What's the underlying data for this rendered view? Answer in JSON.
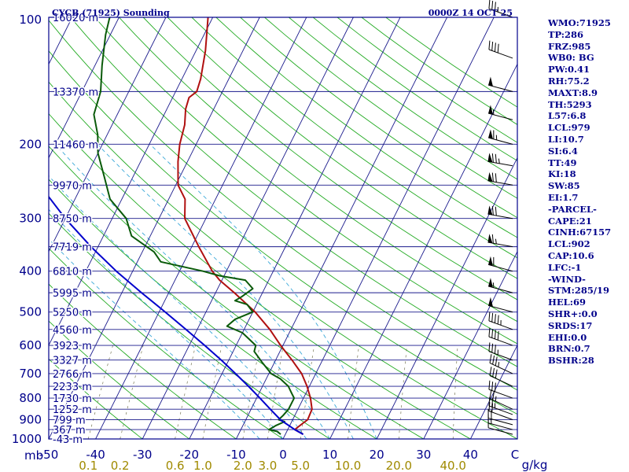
{
  "header": {
    "station": "CYCB (71925) Sounding",
    "datetime": "0000Z 14 OCT 25"
  },
  "chart_data": {
    "type": "line",
    "title": "CYCB (71925) Sounding",
    "pressure_unit_label": "mb",
    "mixing_ratio_unit_label": "g/kg",
    "pressure_levels": [
      100,
      200,
      300,
      400,
      500,
      600,
      700,
      800,
      900,
      1000
    ],
    "pressure_labels": [
      "100",
      "200",
      "300",
      "400",
      "500",
      "600",
      "700",
      "800",
      "900",
      "1000"
    ],
    "height_labels": [
      {
        "p": 100,
        "text": "16020 m"
      },
      {
        "p": 150,
        "text": "13370 m"
      },
      {
        "p": 200,
        "text": "11460 m"
      },
      {
        "p": 250,
        "text": "9970 m"
      },
      {
        "p": 300,
        "text": "8750 m"
      },
      {
        "p": 350,
        "text": "7719 m"
      },
      {
        "p": 400,
        "text": "6810 m"
      },
      {
        "p": 450,
        "text": "5995 m"
      },
      {
        "p": 500,
        "text": "5250 m"
      },
      {
        "p": 550,
        "text": "4560 m"
      },
      {
        "p": 600,
        "text": "3923 m"
      },
      {
        "p": 650,
        "text": "3327 m"
      },
      {
        "p": 700,
        "text": "2766 m"
      },
      {
        "p": 750,
        "text": "2233 m"
      },
      {
        "p": 800,
        "text": "1730 m"
      },
      {
        "p": 850,
        "text": "1252 m"
      },
      {
        "p": 900,
        "text": "799 m"
      },
      {
        "p": 950,
        "text": "367 m"
      },
      {
        "p": 1000,
        "text": "-43 m"
      }
    ],
    "temperature_ticks": [
      "-50",
      "-40",
      "-30",
      "-20",
      "-10",
      "0",
      "10",
      "20",
      "30",
      "40",
      "C"
    ],
    "mixing_ratio_ticks": [
      "0.1",
      "0.2",
      "0.6",
      "1.0",
      "2.0",
      "3.0",
      "5.0",
      "10.0",
      "20.0",
      "40.0"
    ],
    "temperature_range_at_surface_c": [
      -50,
      50
    ],
    "skew_deg_c_per_decade": 45,
    "series": [
      {
        "key": "temperature",
        "color": "#b01010",
        "points": [
          [
            975,
            3.8
          ],
          [
            950,
            1.5
          ],
          [
            925,
            2.3
          ],
          [
            900,
            3.2
          ],
          [
            850,
            3.0
          ],
          [
            800,
            1.5
          ],
          [
            750,
            -0.5
          ],
          [
            700,
            -3.0
          ],
          [
            650,
            -6.5
          ],
          [
            600,
            -10.5
          ],
          [
            550,
            -14.5
          ],
          [
            500,
            -19.5
          ],
          [
            450,
            -26.0
          ],
          [
            420,
            -30.5
          ],
          [
            400,
            -33.0
          ],
          [
            350,
            -38.5
          ],
          [
            300,
            -44.5
          ],
          [
            270,
            -46.5
          ],
          [
            250,
            -49.5
          ],
          [
            220,
            -52.0
          ],
          [
            200,
            -53.5
          ],
          [
            180,
            -54.5
          ],
          [
            165,
            -56.0
          ],
          [
            155,
            -56.5
          ],
          [
            150,
            -55.5
          ],
          [
            140,
            -56.0
          ],
          [
            120,
            -58.0
          ],
          [
            100,
            -61.0
          ]
        ]
      },
      {
        "key": "dewpoint",
        "color": "#0a5a0a",
        "points": [
          [
            975,
            -1.0
          ],
          [
            960,
            -2.0
          ],
          [
            950,
            -4.0
          ],
          [
            930,
            -3.0
          ],
          [
            910,
            -1.5
          ],
          [
            900,
            -3.0
          ],
          [
            880,
            -2.5
          ],
          [
            850,
            -2.0
          ],
          [
            800,
            -2.0
          ],
          [
            780,
            -3.0
          ],
          [
            750,
            -4.5
          ],
          [
            720,
            -7.0
          ],
          [
            700,
            -9.5
          ],
          [
            660,
            -12.5
          ],
          [
            620,
            -15.5
          ],
          [
            600,
            -15.8
          ],
          [
            560,
            -20.0
          ],
          [
            540,
            -24.0
          ],
          [
            520,
            -23.0
          ],
          [
            500,
            -20.0
          ],
          [
            480,
            -22.0
          ],
          [
            470,
            -25.0
          ],
          [
            460,
            -24.0
          ],
          [
            440,
            -22.5
          ],
          [
            420,
            -25.0
          ],
          [
            410,
            -31.0
          ],
          [
            400,
            -35.0
          ],
          [
            380,
            -45.0
          ],
          [
            360,
            -47.5
          ],
          [
            330,
            -54.0
          ],
          [
            300,
            -57.0
          ],
          [
            270,
            -62.5
          ],
          [
            240,
            -66.0
          ],
          [
            210,
            -70.0
          ],
          [
            190,
            -72.0
          ],
          [
            170,
            -75.0
          ],
          [
            150,
            -76.0
          ],
          [
            130,
            -78.5
          ],
          [
            110,
            -81.0
          ],
          [
            100,
            -82.0
          ]
        ]
      },
      {
        "key": "parcel",
        "color": "#0000cc",
        "points": [
          [
            975,
            3.8
          ],
          [
            950,
            1.5
          ],
          [
            902,
            -2.5
          ],
          [
            850,
            -5.9
          ],
          [
            800,
            -9.3
          ],
          [
            750,
            -13.0
          ],
          [
            700,
            -17.1
          ],
          [
            650,
            -21.6
          ],
          [
            600,
            -26.7
          ],
          [
            550,
            -32.4
          ],
          [
            500,
            -38.7
          ],
          [
            450,
            -45.8
          ],
          [
            400,
            -53.5
          ],
          [
            350,
            -61.5
          ],
          [
            300,
            -70.0
          ],
          [
            250,
            -79.0
          ],
          [
            200,
            -88.0
          ],
          [
            150,
            -97.5
          ],
          [
            120,
            -103.5
          ]
        ]
      }
    ],
    "wind_levels": [
      {
        "p": 975,
        "dir": 285,
        "kt": 10
      },
      {
        "p": 950,
        "dir": 285,
        "kt": 15
      },
      {
        "p": 925,
        "dir": 285,
        "kt": 20
      },
      {
        "p": 900,
        "dir": 290,
        "kt": 20
      },
      {
        "p": 875,
        "dir": 290,
        "kt": 25
      },
      {
        "p": 850,
        "dir": 295,
        "kt": 25
      },
      {
        "p": 800,
        "dir": 290,
        "kt": 30
      },
      {
        "p": 750,
        "dir": 295,
        "kt": 30
      },
      {
        "p": 700,
        "dir": 295,
        "kt": 35
      },
      {
        "p": 650,
        "dir": 290,
        "kt": 35
      },
      {
        "p": 600,
        "dir": 290,
        "kt": 40
      },
      {
        "p": 550,
        "dir": 290,
        "kt": 45
      },
      {
        "p": 500,
        "dir": 285,
        "kt": 50
      },
      {
        "p": 450,
        "dir": 285,
        "kt": 55
      },
      {
        "p": 400,
        "dir": 285,
        "kt": 60
      },
      {
        "p": 350,
        "dir": 280,
        "kt": 65
      },
      {
        "p": 300,
        "dir": 280,
        "kt": 70
      },
      {
        "p": 250,
        "dir": 280,
        "kt": 70
      },
      {
        "p": 225,
        "dir": 280,
        "kt": 75
      },
      {
        "p": 200,
        "dir": 285,
        "kt": 65
      },
      {
        "p": 175,
        "dir": 285,
        "kt": 55
      },
      {
        "p": 150,
        "dir": 285,
        "kt": 50
      },
      {
        "p": 125,
        "dir": 290,
        "kt": 40
      },
      {
        "p": 100,
        "dir": 290,
        "kt": 35
      }
    ]
  },
  "indices": [
    "WMO:71925",
    "TP:286",
    "FRZ:985",
    "WB0: BG",
    "PW:0.41",
    "RH:75.2",
    "MAXT:8.9",
    "TH:5293",
    "L57:6.8",
    "LCL:979",
    "LI:10.7",
    "SI:6.4",
    "TT:49",
    "KI:18",
    "SW:85",
    "EI:1.7",
    "-PARCEL-",
    "CAPE:21",
    "CINH:67157",
    "LCL:902",
    "CAP:10.6",
    "LFC:-1",
    "-WIND-",
    "STM:285/19",
    "HEL:69",
    "SHR+:0.0",
    "SRDS:17",
    "EHI:0.0",
    "BRN:0.7",
    "BSHR:28"
  ]
}
